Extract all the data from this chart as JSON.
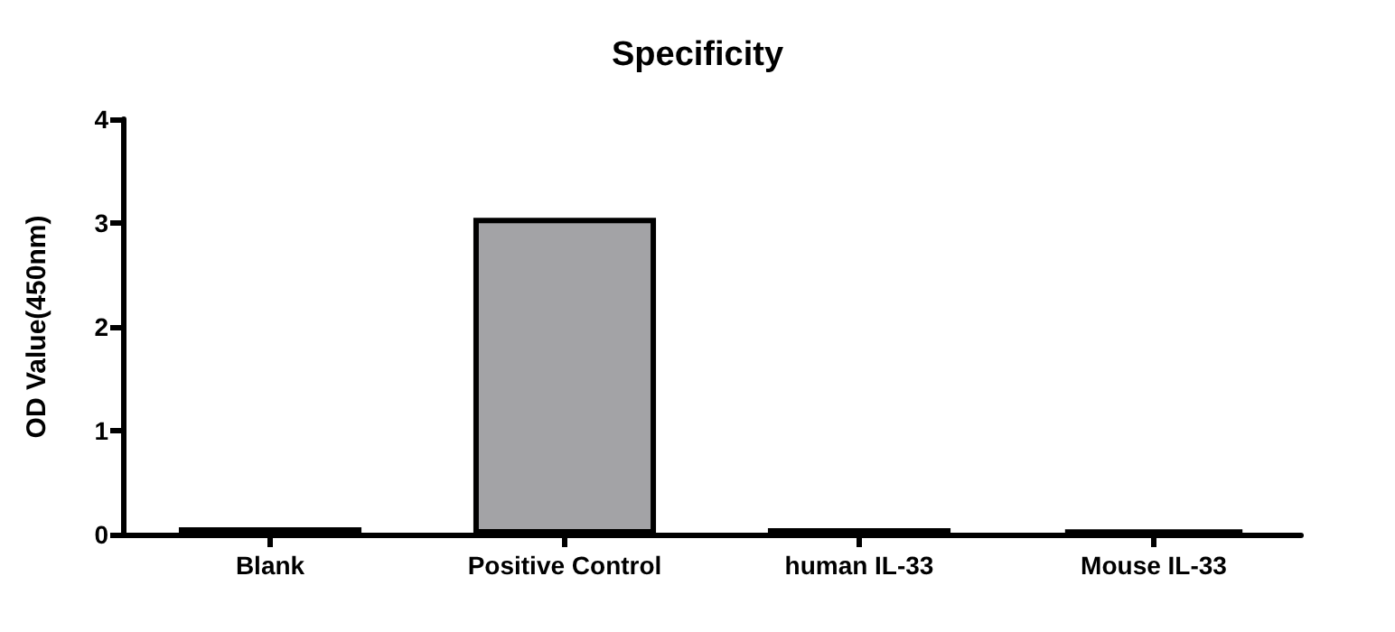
{
  "chart_data": {
    "type": "bar",
    "title": "Specificity",
    "ylabel": "OD Value(450nm)",
    "categories": [
      "Blank",
      "Positive Control",
      "human IL-33",
      "Mouse IL-33"
    ],
    "values": [
      0.07,
      3.05,
      0.06,
      0.05
    ],
    "colors": [
      "#000000",
      "#a3a3a6",
      "#000000",
      "#000000"
    ],
    "ylim": [
      0,
      4
    ],
    "yticks": [
      0,
      1,
      2,
      3,
      4
    ],
    "grid": false
  }
}
